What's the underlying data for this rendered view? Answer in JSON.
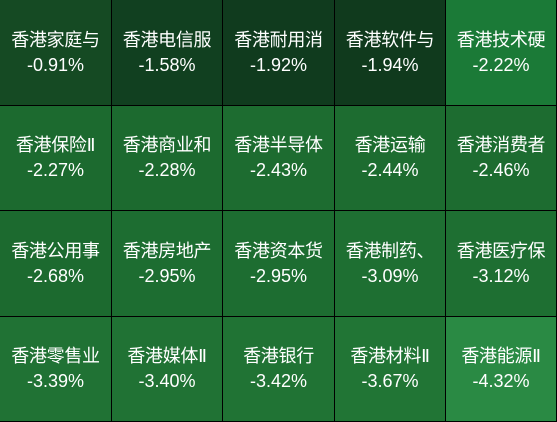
{
  "chart_data": {
    "type": "heatmap",
    "columns": 5,
    "tiles": [
      {
        "name": "香港家庭与",
        "value": -0.91,
        "label": "-0.91%",
        "color": "#154a23"
      },
      {
        "name": "香港电信服",
        "value": -1.58,
        "label": "-1.58%",
        "color": "#114020"
      },
      {
        "name": "香港耐用消",
        "value": -1.92,
        "label": "-1.92%",
        "color": "#103b1e"
      },
      {
        "name": "香港软件与",
        "value": -1.94,
        "label": "-1.94%",
        "color": "#103a1d"
      },
      {
        "name": "香港技术硬",
        "value": -2.22,
        "label": "-2.22%",
        "color": "#1b7a37"
      },
      {
        "name": "香港保险Ⅱ",
        "value": -2.27,
        "label": "-2.27%",
        "color": "#1c6a2f"
      },
      {
        "name": "香港商业和",
        "value": -2.28,
        "label": "-2.28%",
        "color": "#1c6a2f"
      },
      {
        "name": "香港半导体",
        "value": -2.43,
        "label": "-2.43%",
        "color": "#1d6c30"
      },
      {
        "name": "香港运输",
        "value": -2.44,
        "label": "-2.44%",
        "color": "#1d6c30"
      },
      {
        "name": "香港消费者",
        "value": -2.46,
        "label": "-2.46%",
        "color": "#1d6c30"
      },
      {
        "name": "香港公用事",
        "value": -2.68,
        "label": "-2.68%",
        "color": "#1c6a2f"
      },
      {
        "name": "香港房地产",
        "value": -2.95,
        "label": "-2.95%",
        "color": "#1d6d31"
      },
      {
        "name": "香港资本货",
        "value": -2.95,
        "label": "-2.95%",
        "color": "#1d6d31"
      },
      {
        "name": "香港制药、",
        "value": -3.09,
        "label": "-3.09%",
        "color": "#1e6f32"
      },
      {
        "name": "香港医疗保",
        "value": -3.12,
        "label": "-3.12%",
        "color": "#1e6f32"
      },
      {
        "name": "香港零售业",
        "value": -3.39,
        "label": "-3.39%",
        "color": "#207234"
      },
      {
        "name": "香港媒体Ⅱ",
        "value": -3.4,
        "label": "-3.40%",
        "color": "#207234"
      },
      {
        "name": "香港银行",
        "value": -3.42,
        "label": "-3.42%",
        "color": "#207334"
      },
      {
        "name": "香港材料Ⅱ",
        "value": -3.67,
        "label": "-3.67%",
        "color": "#217535"
      },
      {
        "name": "香港能源Ⅱ",
        "value": -4.32,
        "label": "-4.32%",
        "color": "#2a8a44"
      }
    ]
  }
}
